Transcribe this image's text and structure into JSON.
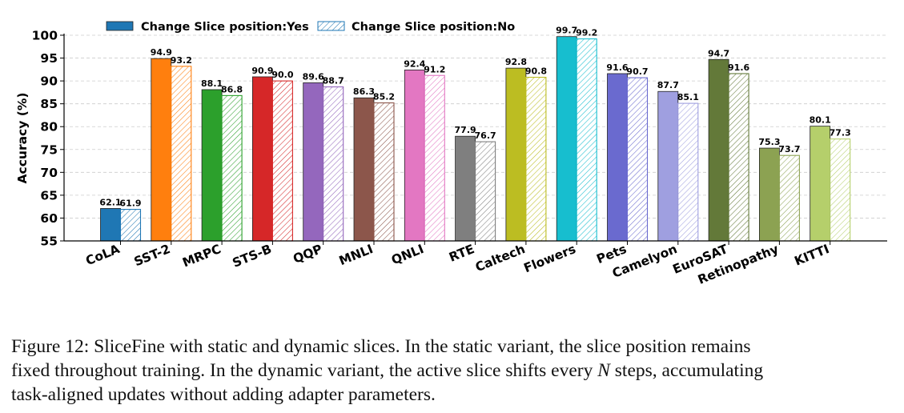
{
  "chart_data": {
    "type": "bar",
    "ylabel": "Accuracy (%)",
    "ylim": [
      55,
      100
    ],
    "yticks": [
      55,
      60,
      65,
      70,
      75,
      80,
      85,
      90,
      95,
      100
    ],
    "grid": true,
    "legend_position": "top-left",
    "categories": [
      "CoLA",
      "SST-2",
      "MRPC",
      "STS-B",
      "QQP",
      "MNLI",
      "QNLI",
      "RTE",
      "Caltech",
      "Flowers",
      "Pets",
      "Camelyon",
      "EuroSAT",
      "Retinopathy",
      "KITTI"
    ],
    "colors": [
      "#1f77b4",
      "#ff7f0e",
      "#2ca02c",
      "#d62728",
      "#9467bd",
      "#8c564b",
      "#e377c2",
      "#7f7f7f",
      "#bcbd22",
      "#17becf",
      "#6a6acf",
      "#9f9fe0",
      "#637939",
      "#8ca252",
      "#b5cf6b"
    ],
    "series": [
      {
        "name": "Change Slice position:Yes",
        "style": "solid",
        "values": [
          62.1,
          94.9,
          88.1,
          90.9,
          89.6,
          86.3,
          92.4,
          77.9,
          92.8,
          99.7,
          91.6,
          87.7,
          94.7,
          75.3,
          80.1
        ],
        "labels": [
          "62.1",
          "94.9",
          "88.1",
          "90.9",
          "89.6",
          "86.3",
          "92.4",
          "77.9",
          "92.8",
          "99.7",
          "91.6",
          "87.7",
          "94.7",
          "75.3",
          "80.1"
        ]
      },
      {
        "name": "Change Slice position:No",
        "style": "hatched",
        "values": [
          61.9,
          93.2,
          86.8,
          90.0,
          88.7,
          85.2,
          91.2,
          76.7,
          90.8,
          99.2,
          90.7,
          85.1,
          91.6,
          73.7,
          77.3
        ],
        "labels": [
          "61.9",
          "93.2",
          "86.8",
          "90.0",
          "88.7",
          "85.2",
          "91.2",
          "76.7",
          "90.8",
          "99.2",
          "90.7",
          "85.1",
          "91.6",
          "73.7",
          "77.3"
        ]
      }
    ]
  },
  "caption": {
    "line1": "Figure 12: SliceFine with static and dynamic slices. In the static variant, the slice position remains",
    "line2_start": "fixed throughout training. In the dynamic variant, the active slice shifts every ",
    "line2_var": "N",
    "line2_end": " steps, accumulating",
    "line3": "task-aligned updates without adding adapter parameters."
  }
}
